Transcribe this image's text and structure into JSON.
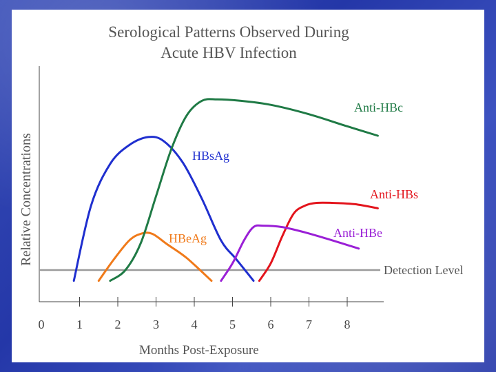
{
  "chart_data": {
    "type": "line",
    "title": [
      "Serological Patterns Observed During",
      "Acute HBV Infection"
    ],
    "xlabel": "Months Post-Exposure",
    "ylabel": "Relative Concentrations",
    "x_ticks": [
      "0",
      "1",
      "2",
      "3",
      "4",
      "5",
      "6",
      "7",
      "8"
    ],
    "detection_level_label": "Detection Level",
    "detection_level_y": 0.0,
    "series": [
      {
        "name": "HBsAg",
        "color": "#1f2fcf",
        "x": [
          0.85,
          1.3,
          1.8,
          2.3,
          2.8,
          3.2,
          3.7,
          4.2,
          4.7,
          5.1,
          5.55
        ],
        "y": [
          -0.08,
          0.48,
          0.79,
          0.93,
          0.99,
          0.96,
          0.8,
          0.53,
          0.22,
          0.08,
          -0.08
        ]
      },
      {
        "name": "HBeAg",
        "color": "#f07a1a",
        "x": [
          1.5,
          1.9,
          2.3,
          2.6,
          2.9,
          3.3,
          3.8,
          4.45
        ],
        "y": [
          -0.08,
          0.08,
          0.22,
          0.27,
          0.27,
          0.19,
          0.09,
          -0.08
        ]
      },
      {
        "name": "Anti-HBc",
        "color": "#1f7a45",
        "x": [
          1.8,
          2.2,
          2.6,
          3.0,
          3.4,
          3.8,
          4.2,
          4.6,
          5.2,
          6.0,
          7.0,
          8.0,
          8.8
        ],
        "y": [
          -0.08,
          0.0,
          0.2,
          0.55,
          0.9,
          1.15,
          1.26,
          1.27,
          1.26,
          1.23,
          1.16,
          1.07,
          1.0
        ]
      },
      {
        "name": "Anti-HBs",
        "color": "#e3141c",
        "x": [
          5.7,
          6.0,
          6.3,
          6.6,
          6.9,
          7.2,
          7.6,
          8.2,
          8.8
        ],
        "y": [
          -0.08,
          0.05,
          0.25,
          0.42,
          0.48,
          0.5,
          0.5,
          0.49,
          0.46
        ]
      },
      {
        "name": "Anti-HBe",
        "color": "#9a1fd6",
        "x": [
          4.7,
          5.0,
          5.3,
          5.55,
          5.8,
          6.3,
          6.9,
          7.5,
          8.3
        ],
        "y": [
          -0.08,
          0.05,
          0.22,
          0.32,
          0.33,
          0.32,
          0.28,
          0.23,
          0.16
        ]
      }
    ]
  }
}
